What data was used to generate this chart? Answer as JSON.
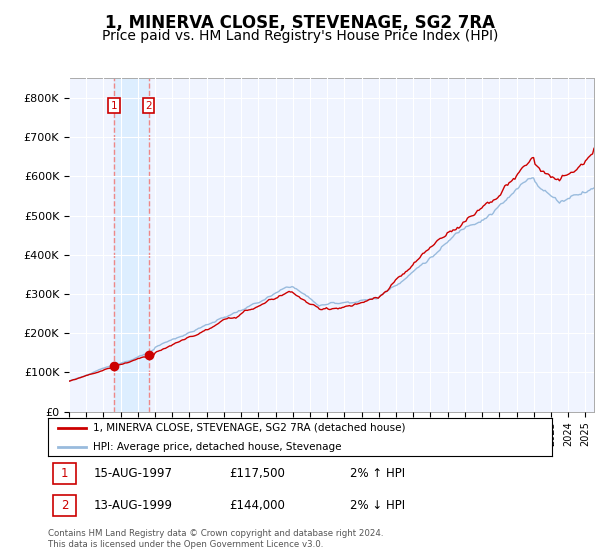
{
  "title": "1, MINERVA CLOSE, STEVENAGE, SG2 7RA",
  "subtitle": "Price paid vs. HM Land Registry's House Price Index (HPI)",
  "title_fontsize": 12,
  "subtitle_fontsize": 10,
  "ylabel_ticks": [
    "£0",
    "£100K",
    "£200K",
    "£300K",
    "£400K",
    "£500K",
    "£600K",
    "£700K",
    "£800K"
  ],
  "ytick_values": [
    0,
    100000,
    200000,
    300000,
    400000,
    500000,
    600000,
    700000,
    800000
  ],
  "ylim": [
    0,
    850000
  ],
  "xlim_start": 1995.0,
  "xlim_end": 2025.5,
  "sale_dates": [
    1997.62,
    1999.62
  ],
  "sale_prices": [
    117500,
    144000
  ],
  "sale_labels": [
    "1",
    "2"
  ],
  "sale_label_color": "#cc0000",
  "sale_dot_color": "#cc0000",
  "hpi_line_color": "#99bbdd",
  "price_line_color": "#cc0000",
  "shading_color": "#ddeeff",
  "plot_bg_color": "#f0f4ff",
  "legend_entries": [
    "1, MINERVA CLOSE, STEVENAGE, SG2 7RA (detached house)",
    "HPI: Average price, detached house, Stevenage"
  ],
  "table_entries": [
    {
      "label": "1",
      "date": "15-AUG-1997",
      "price": "£117,500",
      "hpi": "2% ↑ HPI"
    },
    {
      "label": "2",
      "date": "13-AUG-1999",
      "price": "£144,000",
      "hpi": "2% ↓ HPI"
    }
  ],
  "footer": "Contains HM Land Registry data © Crown copyright and database right 2024.\nThis data is licensed under the Open Government Licence v3.0.",
  "grid_color": "#ffffff",
  "vline_color": "#ee8888"
}
